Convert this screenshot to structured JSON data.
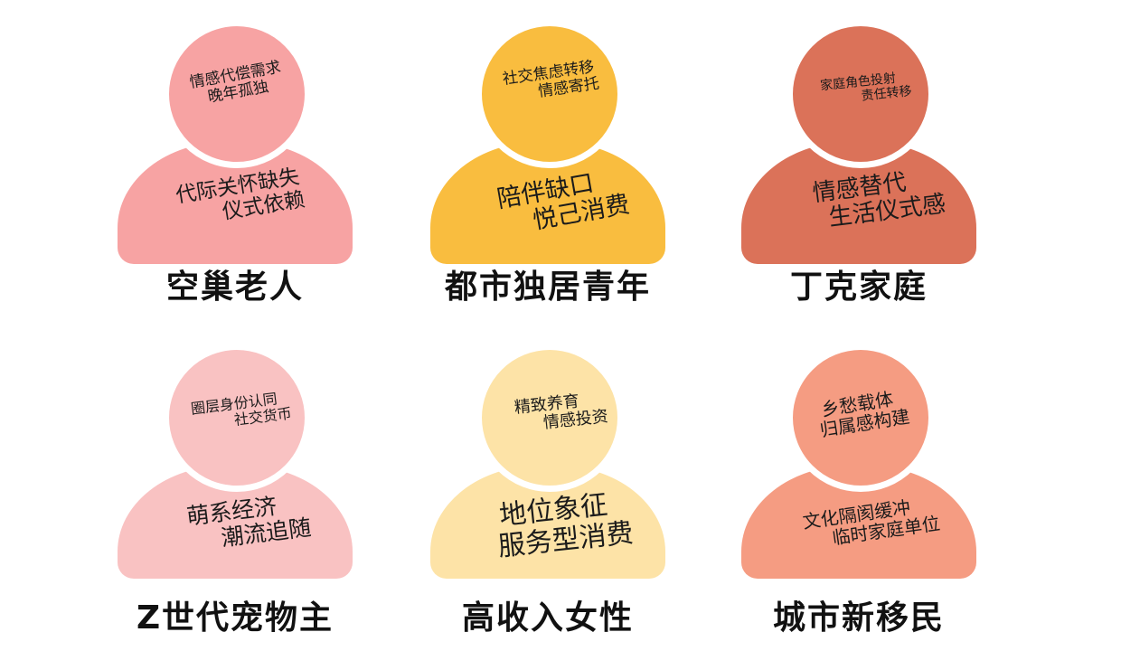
{
  "personas": [
    {
      "name": "空巢老人",
      "head_text": [
        "情感代偿需求",
        "晚年孤独"
      ],
      "body_text": [
        "代际关怀缺失",
        "仪式依赖"
      ],
      "color": "#f7a3a3"
    },
    {
      "name": "都市独居青年",
      "head_text": [
        "社交焦虑转移",
        "情感寄托"
      ],
      "body_text": [
        "陪伴缺口",
        "悦己消费"
      ],
      "color": "#f9bd3f"
    },
    {
      "name": "丁克家庭",
      "head_text": [
        "家庭角色投射",
        "责任转移"
      ],
      "body_text": [
        "情感替代",
        "生活仪式感"
      ],
      "color": "#db7259"
    },
    {
      "name": "Z世代宠物主",
      "head_text": [
        "圈层身份认同",
        "社交货币"
      ],
      "body_text": [
        "萌系经济",
        "潮流追随"
      ],
      "color": "#f9c2c2"
    },
    {
      "name": "高收入女性",
      "head_text": [
        "精致养育",
        "情感投资"
      ],
      "body_text": [
        "地位象征",
        "服务型消费"
      ],
      "color": "#fde3a7"
    },
    {
      "name": "城市新移民",
      "head_text": [
        "乡愁载体",
        "归属感构建"
      ],
      "body_text": [
        "文化隔阂缓冲",
        "临时家庭单位"
      ],
      "color": "#f59c82"
    }
  ]
}
